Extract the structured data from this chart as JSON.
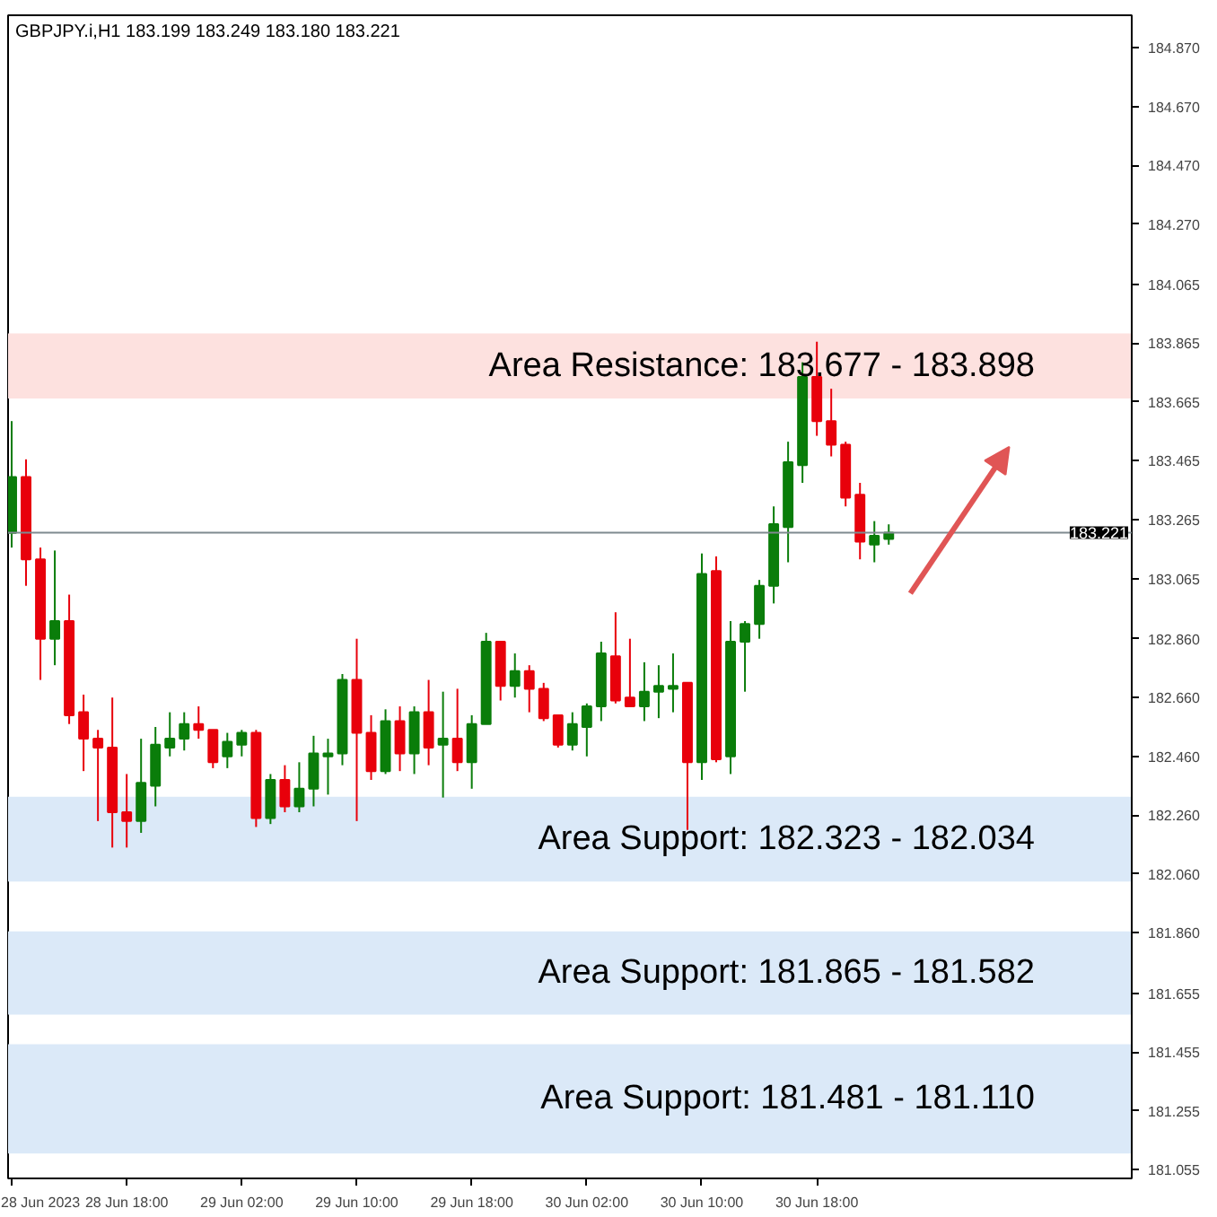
{
  "chart_data": {
    "type": "candlestick",
    "title": "GBPJPY.i,H1  183.199 183.249 183.180 183.221",
    "x": [
      "2023-06-28T10:00",
      "2023-06-28T11:00",
      "2023-06-28T12:00",
      "2023-06-28T13:00",
      "2023-06-28T14:00",
      "2023-06-28T15:00",
      "2023-06-28T16:00",
      "2023-06-28T17:00",
      "2023-06-28T18:00",
      "2023-06-28T19:00",
      "2023-06-28T20:00",
      "2023-06-28T21:00",
      "2023-06-28T22:00",
      "2023-06-28T23:00",
      "2023-06-29T00:00",
      "2023-06-29T01:00",
      "2023-06-29T02:00",
      "2023-06-29T03:00",
      "2023-06-29T04:00",
      "2023-06-29T05:00",
      "2023-06-29T06:00",
      "2023-06-29T07:00",
      "2023-06-29T08:00",
      "2023-06-29T09:00",
      "2023-06-29T10:00",
      "2023-06-29T11:00",
      "2023-06-29T12:00",
      "2023-06-29T13:00",
      "2023-06-29T14:00",
      "2023-06-29T15:00",
      "2023-06-29T16:00",
      "2023-06-29T17:00",
      "2023-06-29T18:00",
      "2023-06-29T19:00",
      "2023-06-29T20:00",
      "2023-06-29T21:00",
      "2023-06-29T22:00",
      "2023-06-29T23:00",
      "2023-06-30T00:00",
      "2023-06-30T01:00",
      "2023-06-30T02:00",
      "2023-06-30T03:00",
      "2023-06-30T04:00",
      "2023-06-30T05:00",
      "2023-06-30T06:00",
      "2023-06-30T07:00",
      "2023-06-30T08:00",
      "2023-06-30T09:00",
      "2023-06-30T10:00",
      "2023-06-30T11:00",
      "2023-06-30T12:00",
      "2023-06-30T13:00",
      "2023-06-30T14:00",
      "2023-06-30T15:00",
      "2023-06-30T16:00",
      "2023-06-30T17:00",
      "2023-06-30T18:00",
      "2023-06-30T19:00",
      "2023-06-30T20:00",
      "2023-06-30T21:00",
      "2023-06-30T22:00",
      "2023-06-30T23:00"
    ],
    "ohlc": [
      [
        183.22,
        183.6,
        183.17,
        183.41
      ],
      [
        183.41,
        183.47,
        183.04,
        183.13
      ],
      [
        183.13,
        183.17,
        182.72,
        182.86
      ],
      [
        182.86,
        183.16,
        182.77,
        182.92
      ],
      [
        182.92,
        183.01,
        182.57,
        182.6
      ],
      [
        182.61,
        182.67,
        182.41,
        182.52
      ],
      [
        182.52,
        182.55,
        182.24,
        182.49
      ],
      [
        182.49,
        182.66,
        182.15,
        182.27
      ],
      [
        182.27,
        182.4,
        182.15,
        182.24
      ],
      [
        182.24,
        182.52,
        182.2,
        182.37
      ],
      [
        182.36,
        182.56,
        182.29,
        182.5
      ],
      [
        182.49,
        182.61,
        182.46,
        182.52
      ],
      [
        182.52,
        182.61,
        182.48,
        182.57
      ],
      [
        182.57,
        182.63,
        182.52,
        182.55
      ],
      [
        182.55,
        182.55,
        182.42,
        182.44
      ],
      [
        182.46,
        182.54,
        182.42,
        182.51
      ],
      [
        182.5,
        182.55,
        182.46,
        182.54
      ],
      [
        182.54,
        182.55,
        182.22,
        182.25
      ],
      [
        182.25,
        182.4,
        182.23,
        182.38
      ],
      [
        182.38,
        182.43,
        182.27,
        182.29
      ],
      [
        182.29,
        182.44,
        182.27,
        182.35
      ],
      [
        182.35,
        182.53,
        182.29,
        182.47
      ],
      [
        182.46,
        182.52,
        182.33,
        182.47
      ],
      [
        182.47,
        182.74,
        182.43,
        182.72
      ],
      [
        182.72,
        182.86,
        182.24,
        182.54
      ],
      [
        182.54,
        182.6,
        182.38,
        182.41
      ],
      [
        182.41,
        182.62,
        182.4,
        182.58
      ],
      [
        182.58,
        182.63,
        182.41,
        182.47
      ],
      [
        182.47,
        182.63,
        182.4,
        182.61
      ],
      [
        182.61,
        182.72,
        182.43,
        182.49
      ],
      [
        182.5,
        182.68,
        182.32,
        182.52
      ],
      [
        182.52,
        182.69,
        182.41,
        182.44
      ],
      [
        182.44,
        182.6,
        182.35,
        182.57
      ],
      [
        182.57,
        182.88,
        182.57,
        182.85
      ],
      [
        182.85,
        182.85,
        182.65,
        182.7
      ],
      [
        182.7,
        182.81,
        182.66,
        182.75
      ],
      [
        182.75,
        182.77,
        182.61,
        182.69
      ],
      [
        182.69,
        182.71,
        182.58,
        182.59
      ],
      [
        182.6,
        182.6,
        182.49,
        182.5
      ],
      [
        182.5,
        182.61,
        182.48,
        182.57
      ],
      [
        182.56,
        182.64,
        182.46,
        182.63
      ],
      [
        182.63,
        182.85,
        182.58,
        182.81
      ],
      [
        182.8,
        182.95,
        182.64,
        182.65
      ],
      [
        182.66,
        182.86,
        182.63,
        182.63
      ],
      [
        182.63,
        182.78,
        182.58,
        182.68
      ],
      [
        182.68,
        182.77,
        182.59,
        182.7
      ],
      [
        182.69,
        182.81,
        182.61,
        182.7
      ],
      [
        182.71,
        182.71,
        182.21,
        182.44
      ],
      [
        182.44,
        183.15,
        182.38,
        183.08
      ],
      [
        183.09,
        183.14,
        182.44,
        182.45
      ],
      [
        182.46,
        182.92,
        182.4,
        182.85
      ],
      [
        182.85,
        182.92,
        182.68,
        182.91
      ],
      [
        182.91,
        183.06,
        182.86,
        183.04
      ],
      [
        183.04,
        183.31,
        182.98,
        183.25
      ],
      [
        183.24,
        183.53,
        183.12,
        183.46
      ],
      [
        183.45,
        183.8,
        183.39,
        183.75
      ],
      [
        183.75,
        183.87,
        183.55,
        183.6
      ],
      [
        183.6,
        183.71,
        183.48,
        183.52
      ],
      [
        183.52,
        183.53,
        183.31,
        183.34
      ],
      [
        183.35,
        183.39,
        183.13,
        183.19
      ],
      [
        183.18,
        183.26,
        183.12,
        183.21
      ],
      [
        183.199,
        183.249,
        183.18,
        183.221
      ]
    ],
    "colors": [
      "#0a7d0a",
      "#e8000b",
      "#e8000b",
      "#0a7d0a",
      "#e8000b",
      "#e8000b",
      "#e8000b",
      "#e8000b",
      "#e8000b",
      "#0a7d0a",
      "#0a7d0a",
      "#0a7d0a",
      "#0a7d0a",
      "#e8000b",
      "#e8000b",
      "#0a7d0a",
      "#0a7d0a",
      "#e8000b",
      "#0a7d0a",
      "#e8000b",
      "#0a7d0a",
      "#0a7d0a",
      "#0a7d0a",
      "#0a7d0a",
      "#e8000b",
      "#e8000b",
      "#0a7d0a",
      "#e8000b",
      "#0a7d0a",
      "#e8000b",
      "#0a7d0a",
      "#e8000b",
      "#0a7d0a",
      "#0a7d0a",
      "#e8000b",
      "#0a7d0a",
      "#e8000b",
      "#e8000b",
      "#e8000b",
      "#0a7d0a",
      "#0a7d0a",
      "#0a7d0a",
      "#e8000b",
      "#e8000b",
      "#0a7d0a",
      "#0a7d0a",
      "#0a7d0a",
      "#e8000b",
      "#0a7d0a",
      "#e8000b",
      "#0a7d0a",
      "#0a7d0a",
      "#0a7d0a",
      "#0a7d0a",
      "#0a7d0a",
      "#0a7d0a",
      "#e8000b",
      "#e8000b",
      "#e8000b",
      "#e8000b",
      "#0a7d0a",
      "#0a7d0a"
    ],
    "xlim": [
      "2023-06-28T09:45",
      "2023-07-01T15:54"
    ],
    "ylim": [
      181.025,
      184.98
    ],
    "xticks": [
      {
        "value": "2023-06-28T10:00",
        "label": "28 Jun 2023"
      },
      {
        "value": "2023-06-28T18:00",
        "label": "28 Jun 18:00"
      },
      {
        "value": "2023-06-29T02:00",
        "label": "29 Jun 02:00"
      },
      {
        "value": "2023-06-29T10:00",
        "label": "29 Jun 10:00"
      },
      {
        "value": "2023-06-29T18:00",
        "label": "29 Jun 18:00"
      },
      {
        "value": "2023-06-30T02:00",
        "label": "30 Jun 02:00"
      },
      {
        "value": "2023-06-30T10:00",
        "label": "30 Jun 10:00"
      },
      {
        "value": "2023-06-30T18:00",
        "label": "30 Jun 18:00"
      }
    ],
    "yticks": [
      {
        "value": 184.87,
        "label": "184.870"
      },
      {
        "value": 184.67,
        "label": "184.670"
      },
      {
        "value": 184.47,
        "label": "184.470"
      },
      {
        "value": 184.27,
        "label": "184.270"
      },
      {
        "value": 184.065,
        "label": "184.065"
      },
      {
        "value": 183.865,
        "label": "183.865"
      },
      {
        "value": 183.665,
        "label": "183.665"
      },
      {
        "value": 183.465,
        "label": "183.465"
      },
      {
        "value": 183.265,
        "label": "183.265"
      },
      {
        "value": 183.065,
        "label": "183.065"
      },
      {
        "value": 182.86,
        "label": "182.860"
      },
      {
        "value": 182.66,
        "label": "182.660"
      },
      {
        "value": 182.46,
        "label": "182.460"
      },
      {
        "value": 182.26,
        "label": "182.260"
      },
      {
        "value": 182.06,
        "label": "182.060"
      },
      {
        "value": 181.86,
        "label": "181.860"
      },
      {
        "value": 181.655,
        "label": "181.655"
      },
      {
        "value": 181.455,
        "label": "181.455"
      },
      {
        "value": 181.255,
        "label": "181.255"
      },
      {
        "value": 181.055,
        "label": "181.055"
      }
    ],
    "bands": [
      {
        "axis": "y",
        "from": 183.677,
        "to": 183.898,
        "label": "Area Resistance: 183.677 - 183.898",
        "color": "#fde1df"
      },
      {
        "axis": "y",
        "from": 182.034,
        "to": 182.323,
        "label": "Area Support: 182.323 - 182.034",
        "color": "#dbe9f8"
      },
      {
        "axis": "y",
        "from": 181.582,
        "to": 181.865,
        "label": "Area Support: 181.865 - 181.582",
        "color": "#dbe9f8"
      },
      {
        "axis": "y",
        "from": 181.11,
        "to": 181.481,
        "label": "Area Support: 181.481 - 181.110",
        "color": "#dbe9f8"
      }
    ],
    "ref_lines": [
      {
        "axis": "y",
        "value": 183.221,
        "label": "183.221",
        "color": "#7f8a8f"
      }
    ],
    "grid": false
  }
}
